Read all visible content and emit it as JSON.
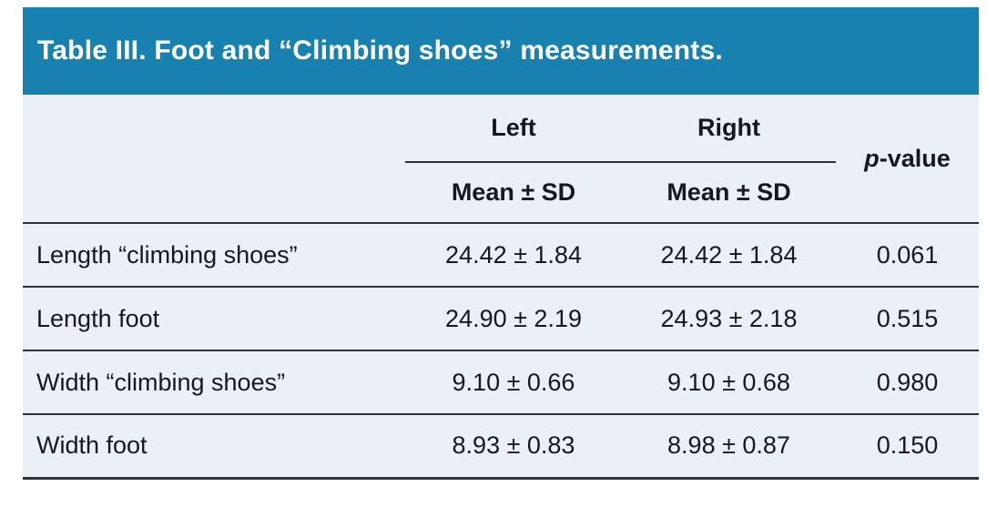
{
  "colors": {
    "accent": "#1981af",
    "table_bg": "#ebeff6",
    "line": "#2e3138",
    "text": "#17171f",
    "title_text": "#ffffff"
  },
  "title": {
    "text": "Table III. Foot and “Climbing shoes” measurements."
  },
  "header": {
    "left_group": "Left",
    "right_group": "Right",
    "sub_left": "Mean ± SD",
    "sub_right": "Mean ± SD",
    "p_italic": "p",
    "p_rest": "-value"
  },
  "rows": [
    {
      "label": "Length “climbing shoes”",
      "left": "24.42 ± 1.84",
      "right": "24.42 ± 1.84",
      "p": "0.061"
    },
    {
      "label": "Length foot",
      "left": "24.90 ± 2.19",
      "right": "24.93 ± 2.18",
      "p": "0.515"
    },
    {
      "label": "Width “climbing shoes”",
      "left": "9.10 ± 0.66",
      "right": "9.10 ± 0.68",
      "p": "0.980"
    },
    {
      "label": "Width foot",
      "left": "8.93 ± 0.83",
      "right": "8.98 ± 0.87",
      "p": "0.150"
    }
  ]
}
